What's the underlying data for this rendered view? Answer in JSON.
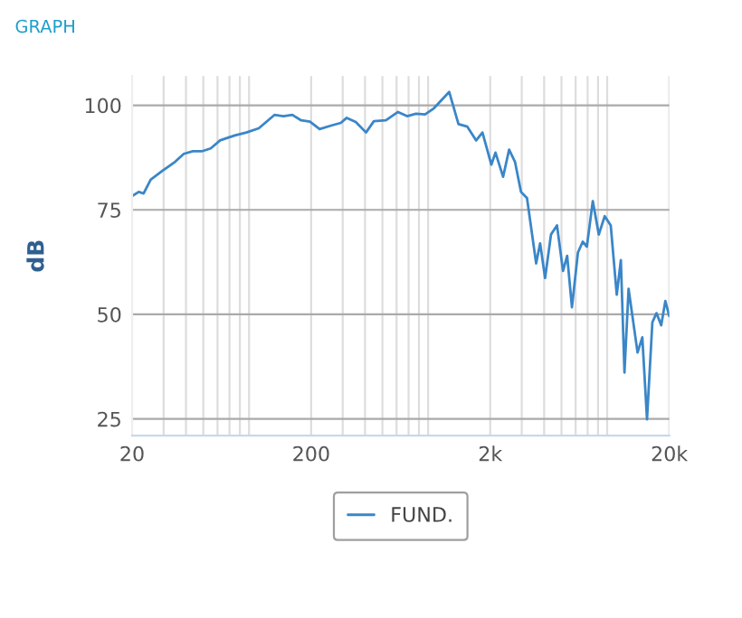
{
  "chart_data": {
    "type": "line",
    "title": "GRAPH",
    "ylabel": "dB",
    "log": "x",
    "grid": true,
    "legend": "bottom",
    "marker": "none",
    "line_style": "solid",
    "xlim": [
      20,
      20000
    ],
    "xticks": [
      20,
      200,
      {
        "value": 2000,
        "label": "2k"
      },
      {
        "value": 20000,
        "label": "20k"
      }
    ],
    "ylim": [
      21,
      107
    ],
    "yticks": [
      25,
      50,
      75,
      100
    ],
    "x": [
      20,
      21.8,
      23.2,
      25.4,
      29.5,
      34.8,
      38.9,
      43.7,
      49,
      55,
      62,
      75,
      87,
      102,
      124.7,
      140,
      157,
      176,
      197,
      223,
      261,
      293,
      316,
      355,
      405,
      448,
      523,
      611,
      687,
      770,
      865,
      970,
      1180,
      1330,
      1490,
      1670,
      1810,
      2030,
      2140,
      2360,
      2550,
      2750,
      2970,
      3210,
      3610,
      3800,
      4050,
      4370,
      4720,
      5100,
      5380,
      5720,
      6180,
      6570,
      6930,
      7480,
      8080,
      8720,
      9420,
      10180,
      10730,
      11240,
      11850,
      13300,
      14140,
      15020,
      16090,
      16960,
      18030,
      19010,
      20000
    ],
    "series": [
      {
        "name": "FUND.",
        "color": "#3a86c8",
        "values": [
          78.3,
          79.3,
          78.9,
          82.2,
          84.3,
          86.5,
          88.4,
          89,
          89,
          89.7,
          91.6,
          92.8,
          93.5,
          94.5,
          97.7,
          97.4,
          97.7,
          96.4,
          96.1,
          94.3,
          95.2,
          95.8,
          97,
          96,
          93.5,
          96.2,
          96.4,
          98.4,
          97.4,
          98,
          97.8,
          99.3,
          103.2,
          95.5,
          94.9,
          91.6,
          93.5,
          85.8,
          88.7,
          82.9,
          89.4,
          86.5,
          79.3,
          77.8,
          62.2,
          67,
          58.7,
          69.1,
          71.3,
          60.4,
          64,
          51.7,
          64.8,
          67.4,
          66.2,
          77.1,
          69.1,
          73.5,
          71.3,
          54.7,
          63,
          36.1,
          56.1,
          40.9,
          44.5,
          24.9,
          48.1,
          50.3,
          47.4,
          53.2,
          49.6
        ]
      }
    ]
  }
}
